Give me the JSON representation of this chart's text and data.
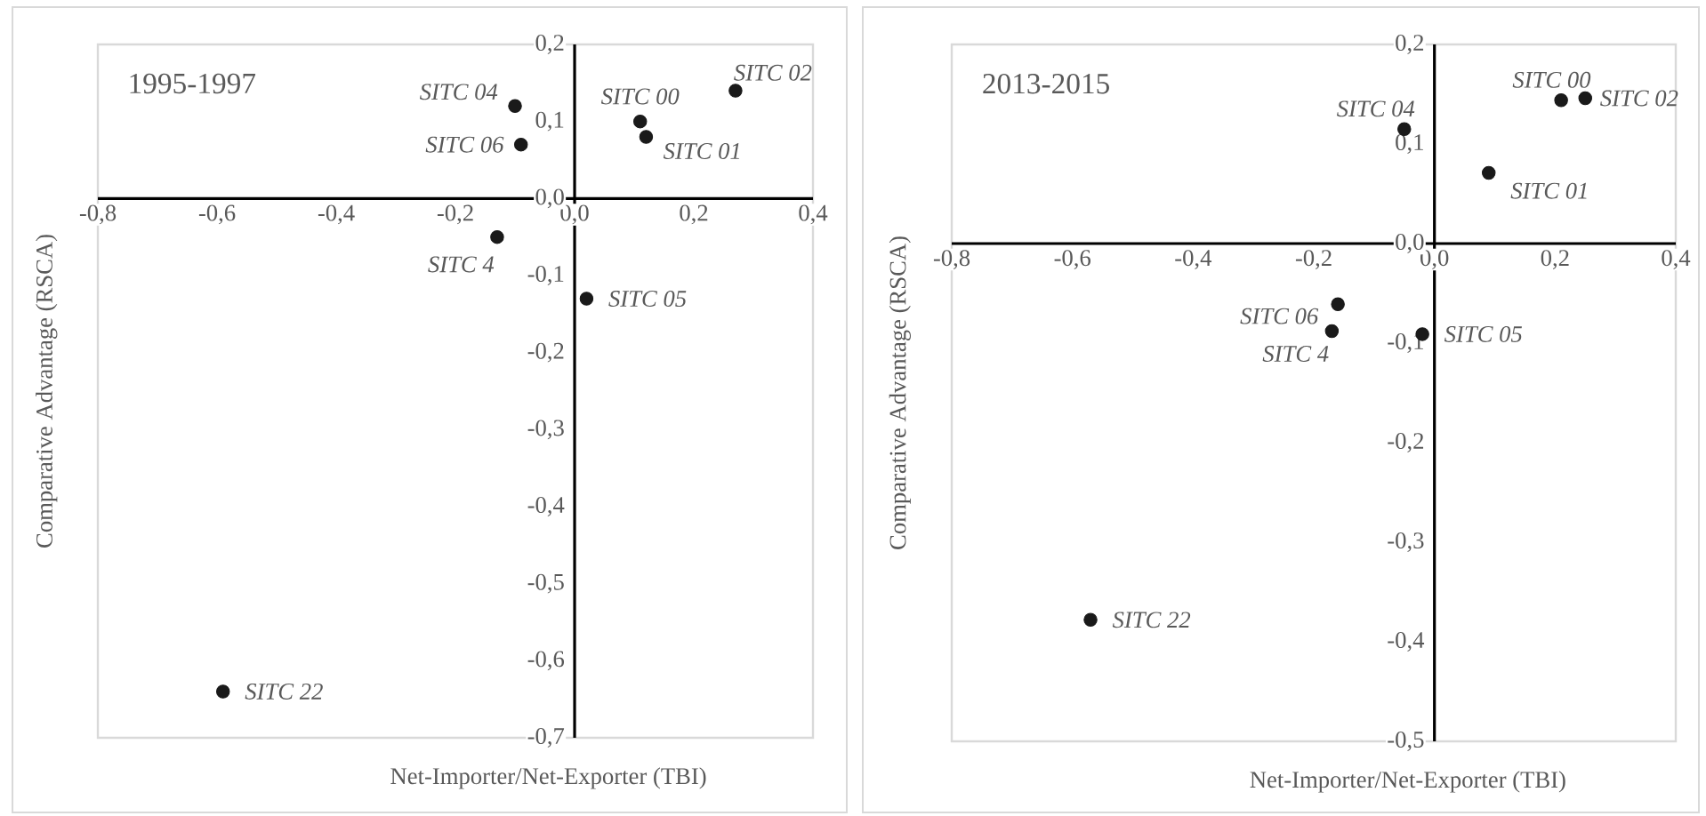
{
  "chart_data": [
    {
      "type": "scatter",
      "title": "1995-1997",
      "xlabel": "Net-Importer/Net-Exporter (TBI)",
      "ylabel": "Comparative Advantage (RSCA)",
      "series": [
        {
          "color": "#1a1a1a",
          "x": [
            -0.1,
            -0.09,
            0.11,
            0.12,
            0.27,
            -0.13,
            0.02,
            -0.59
          ],
          "values": [
            0.12,
            0.07,
            0.1,
            0.08,
            0.14,
            -0.05,
            -0.13,
            -0.64
          ]
        }
      ],
      "annotations": [
        {
          "text": "SITC 04",
          "x": -0.1,
          "y": 0.12
        },
        {
          "text": "SITC 06",
          "x": -0.09,
          "y": 0.07
        },
        {
          "text": "SITC 00",
          "x": 0.11,
          "y": 0.1
        },
        {
          "text": "SITC 01",
          "x": 0.12,
          "y": 0.08
        },
        {
          "text": "SITC 02",
          "x": 0.27,
          "y": 0.14
        },
        {
          "text": "SITC 4",
          "x": -0.13,
          "y": -0.05
        },
        {
          "text": "SITC 05",
          "x": 0.02,
          "y": -0.13
        },
        {
          "text": "SITC 22",
          "x": -0.59,
          "y": -0.64
        }
      ],
      "xlim": [
        -0.8,
        0.4
      ],
      "ylim": [
        -0.7,
        0.2
      ],
      "xticks": [
        {
          "value": -0.8,
          "label": "-0,8"
        },
        {
          "value": -0.6,
          "label": "-0,6"
        },
        {
          "value": -0.4,
          "label": "-0,4"
        },
        {
          "value": -0.2,
          "label": "-0,2"
        },
        {
          "value": 0,
          "label": "0,0"
        },
        {
          "value": 0.2,
          "label": "0,2"
        },
        {
          "value": 0.4,
          "label": "0,4"
        }
      ],
      "yticks": [
        {
          "value": -0.7,
          "label": "-0,7"
        },
        {
          "value": -0.6,
          "label": "-0,6"
        },
        {
          "value": -0.5,
          "label": "-0,5"
        },
        {
          "value": -0.4,
          "label": "-0,4"
        },
        {
          "value": -0.3,
          "label": "-0,3"
        },
        {
          "value": -0.2,
          "label": "-0,2"
        },
        {
          "value": -0.1,
          "label": "-0,1"
        },
        {
          "value": 0,
          "label": "0,0"
        },
        {
          "value": 0.1,
          "label": "0,1"
        },
        {
          "value": 0.2,
          "label": "0,2"
        }
      ]
    },
    {
      "type": "scatter",
      "title": "2013-2015",
      "xlabel": "Net-Importer/Net-Exporter (TBI)",
      "ylabel": "Comparative Advantage (RSCA)",
      "series": [
        {
          "color": "#1a1a1a",
          "x": [
            -0.05,
            0.21,
            0.25,
            0.09,
            -0.16,
            -0.17,
            -0.02,
            -0.57
          ],
          "values": [
            0.115,
            0.144,
            0.146,
            0.071,
            -0.061,
            -0.088,
            -0.091,
            -0.378
          ]
        }
      ],
      "annotations": [
        {
          "text": "SITC 04",
          "x": -0.05,
          "y": 0.115
        },
        {
          "text": "SITC 00",
          "x": 0.21,
          "y": 0.144
        },
        {
          "text": "SITC 02",
          "x": 0.25,
          "y": 0.146
        },
        {
          "text": "SITC 01",
          "x": 0.09,
          "y": 0.071
        },
        {
          "text": "SITC 06",
          "x": -0.16,
          "y": -0.061
        },
        {
          "text": "SITC 4",
          "x": -0.17,
          "y": -0.088
        },
        {
          "text": "SITC 05",
          "x": -0.02,
          "y": -0.091
        },
        {
          "text": "SITC 22",
          "x": -0.57,
          "y": -0.378
        }
      ],
      "xlim": [
        -0.8,
        0.4
      ],
      "ylim": [
        -0.5,
        0.2
      ],
      "xticks": [
        {
          "value": -0.8,
          "label": "-0,8"
        },
        {
          "value": -0.6,
          "label": "-0,6"
        },
        {
          "value": -0.4,
          "label": "-0,4"
        },
        {
          "value": -0.2,
          "label": "-0,2"
        },
        {
          "value": 0,
          "label": "0,0"
        },
        {
          "value": 0.2,
          "label": "0,2"
        },
        {
          "value": 0.4,
          "label": "0,4"
        }
      ],
      "yticks": [
        {
          "value": -0.5,
          "label": "-0,5"
        },
        {
          "value": -0.4,
          "label": "-0,4"
        },
        {
          "value": -0.3,
          "label": "-0,3"
        },
        {
          "value": -0.2,
          "label": "-0,2"
        },
        {
          "value": -0.1,
          "label": "-0,1"
        },
        {
          "value": 0,
          "label": "0,0"
        },
        {
          "value": 0.1,
          "label": "0,1"
        },
        {
          "value": 0.2,
          "label": "0,2"
        }
      ]
    }
  ]
}
